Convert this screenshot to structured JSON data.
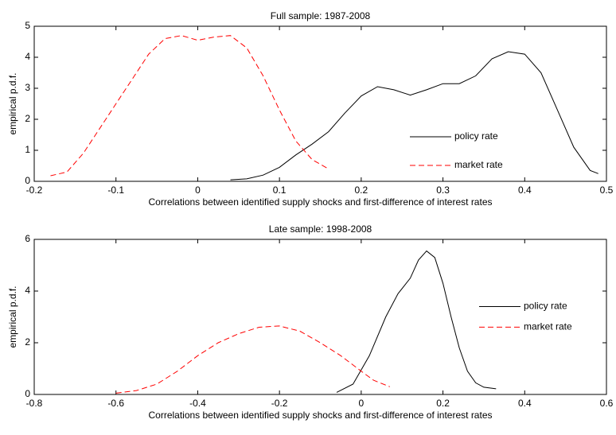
{
  "chart_data": [
    {
      "type": "line",
      "title": "Full sample: 1987-2008",
      "xlabel": "Correlations between identified supply shocks and first-difference of interest rates",
      "ylabel": "empirical p.d.f.",
      "xlim": [
        -0.2,
        0.5
      ],
      "xticks": [
        -0.2,
        -0.1,
        0,
        0.1,
        0.2,
        0.3,
        0.4,
        0.5
      ],
      "ylim": [
        0,
        5
      ],
      "yticks": [
        0,
        1,
        2,
        3,
        4,
        5
      ],
      "grid": false,
      "legend": "center right",
      "series": [
        {
          "name": "policy rate",
          "color": "#000000",
          "dash": false,
          "x": [
            0.04,
            0.06,
            0.08,
            0.1,
            0.12,
            0.14,
            0.16,
            0.18,
            0.2,
            0.22,
            0.24,
            0.26,
            0.28,
            0.3,
            0.32,
            0.34,
            0.36,
            0.38,
            0.4,
            0.42,
            0.44,
            0.46,
            0.48,
            0.49
          ],
          "values": [
            0.05,
            0.08,
            0.2,
            0.45,
            0.85,
            1.2,
            1.6,
            2.2,
            2.75,
            3.05,
            2.95,
            2.78,
            2.95,
            3.15,
            3.15,
            3.4,
            3.95,
            4.18,
            4.1,
            3.5,
            2.3,
            1.1,
            0.35,
            0.25
          ]
        },
        {
          "name": "market rate",
          "color": "#ff0000",
          "dash": true,
          "x": [
            -0.18,
            -0.16,
            -0.14,
            -0.12,
            -0.1,
            -0.08,
            -0.06,
            -0.04,
            -0.02,
            0,
            0.02,
            0.04,
            0.06,
            0.08,
            0.1,
            0.12,
            0.14,
            0.16
          ],
          "values": [
            0.18,
            0.3,
            0.9,
            1.7,
            2.5,
            3.3,
            4.1,
            4.6,
            4.7,
            4.55,
            4.65,
            4.7,
            4.3,
            3.4,
            2.3,
            1.3,
            0.7,
            0.4
          ]
        }
      ]
    },
    {
      "type": "line",
      "title": "Late sample: 1998-2008",
      "xlabel": "Correlations between identified supply shocks and first-difference of interest rates",
      "ylabel": "empirical p.d.f.",
      "xlim": [
        -0.8,
        0.6
      ],
      "xticks": [
        -0.8,
        -0.6,
        -0.4,
        -0.2,
        0,
        0.2,
        0.4,
        0.6
      ],
      "ylim": [
        0,
        6
      ],
      "yticks": [
        0,
        2,
        4,
        6
      ],
      "grid": false,
      "legend": "center right",
      "series": [
        {
          "name": "policy rate",
          "color": "#000000",
          "dash": false,
          "x": [
            -0.06,
            -0.02,
            0.02,
            0.06,
            0.09,
            0.12,
            0.14,
            0.16,
            0.18,
            0.2,
            0.22,
            0.24,
            0.26,
            0.28,
            0.3,
            0.33
          ],
          "values": [
            0.08,
            0.4,
            1.5,
            3.0,
            3.9,
            4.5,
            5.2,
            5.55,
            5.3,
            4.3,
            3.0,
            1.8,
            0.9,
            0.45,
            0.28,
            0.22
          ]
        },
        {
          "name": "market rate",
          "color": "#ff0000",
          "dash": true,
          "x": [
            -0.6,
            -0.55,
            -0.5,
            -0.45,
            -0.4,
            -0.35,
            -0.3,
            -0.25,
            -0.2,
            -0.15,
            -0.1,
            -0.05,
            0,
            0.03,
            0.07
          ],
          "values": [
            0.05,
            0.15,
            0.4,
            0.9,
            1.5,
            2.0,
            2.35,
            2.6,
            2.65,
            2.45,
            2.0,
            1.5,
            0.9,
            0.55,
            0.3
          ]
        }
      ]
    }
  ]
}
